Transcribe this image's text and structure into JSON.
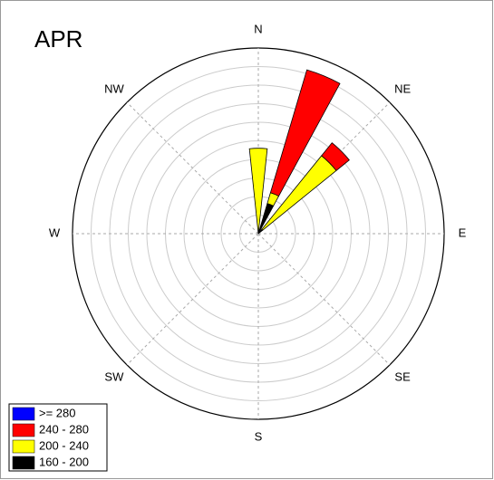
{
  "chart_data": {
    "type": "windrose",
    "title": "APR",
    "x": [
      0,
      22.5,
      45
    ],
    "series": [
      {
        "name": "160 - 200",
        "color": "#000000",
        "values": [
          0,
          1.7,
          0.3
        ]
      },
      {
        "name": "200 - 240",
        "color": "#ffff00",
        "values": [
          4.6,
          0.6,
          5.1
        ]
      },
      {
        "name": "240 - 280",
        "color": "#ff0000",
        "values": [
          0,
          6.9,
          0.9
        ]
      },
      {
        "name": ">= 280",
        "color": "#0000ff",
        "values": [
          0,
          0,
          0
        ]
      }
    ],
    "rlim": [
      0,
      10
    ],
    "rticks": [
      1,
      2,
      3,
      4,
      5,
      6,
      7,
      8,
      9,
      10
    ],
    "xticks": [
      {
        "value": 0,
        "label": "N"
      },
      {
        "value": 45,
        "label": "NE"
      },
      {
        "value": 90,
        "label": "E"
      },
      {
        "value": 135,
        "label": "SE"
      },
      {
        "value": 180,
        "label": "S"
      },
      {
        "value": 225,
        "label": "SW"
      },
      {
        "value": 270,
        "label": "W"
      },
      {
        "value": 315,
        "label": "NW"
      }
    ],
    "legend": "bottom-left"
  }
}
